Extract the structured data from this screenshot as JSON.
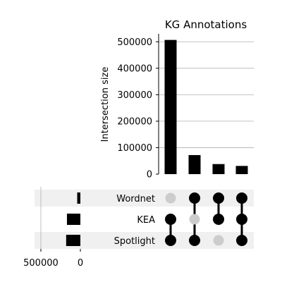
{
  "chart_data": {
    "type": "bar",
    "subtype": "upset",
    "title": "KG Annotations",
    "ylabel": "Intersection size",
    "ylim": [
      0,
      530000
    ],
    "yticks": [
      0,
      100000,
      200000,
      300000,
      400000,
      500000
    ],
    "ytick_labels": [
      "0",
      "100000",
      "200000",
      "300000",
      "400000",
      "500000"
    ],
    "grid": true,
    "sets": [
      "Wordnet",
      "KEA",
      "Spotlight"
    ],
    "set_sizes": [
      40000,
      170000,
      180000
    ],
    "set_size_ticks": [
      500000,
      0
    ],
    "set_size_tick_labels": [
      "500000",
      "0"
    ],
    "set_size_xlim": [
      580000,
      0
    ],
    "intersections": [
      {
        "members": [
          "KEA",
          "Spotlight"
        ],
        "size": 507000
      },
      {
        "members": [
          "Wordnet",
          "Spotlight"
        ],
        "size": 72000
      },
      {
        "members": [
          "Wordnet",
          "KEA"
        ],
        "size": 38000
      },
      {
        "members": [
          "Wordnet",
          "KEA",
          "Spotlight"
        ],
        "size": 31000
      }
    ],
    "colors": {
      "bar": "#000000",
      "active_dot": "#000000",
      "inactive_dot": "#cccccc",
      "row_shade": "#f0f0f0",
      "grid": "#b0b0b0"
    }
  }
}
